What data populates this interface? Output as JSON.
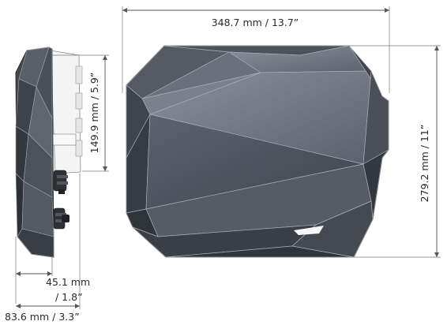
{
  "dimensions": {
    "width": "348.7 mm / 13.7”",
    "height": "279.2 mm / 11”",
    "side_height": "149.9 mm / 5.9”",
    "depth_line1": "45.1 mm",
    "depth_line2": "/ 1.8”",
    "total_depth": "83.6 mm / 3.3”"
  },
  "colors": {
    "body_dark": "#3b3f48",
    "body_mid": "#4a4f59",
    "body_light": "#6a707b",
    "edge": "#9aa0aa",
    "side_panel": "#f4f4f4"
  }
}
